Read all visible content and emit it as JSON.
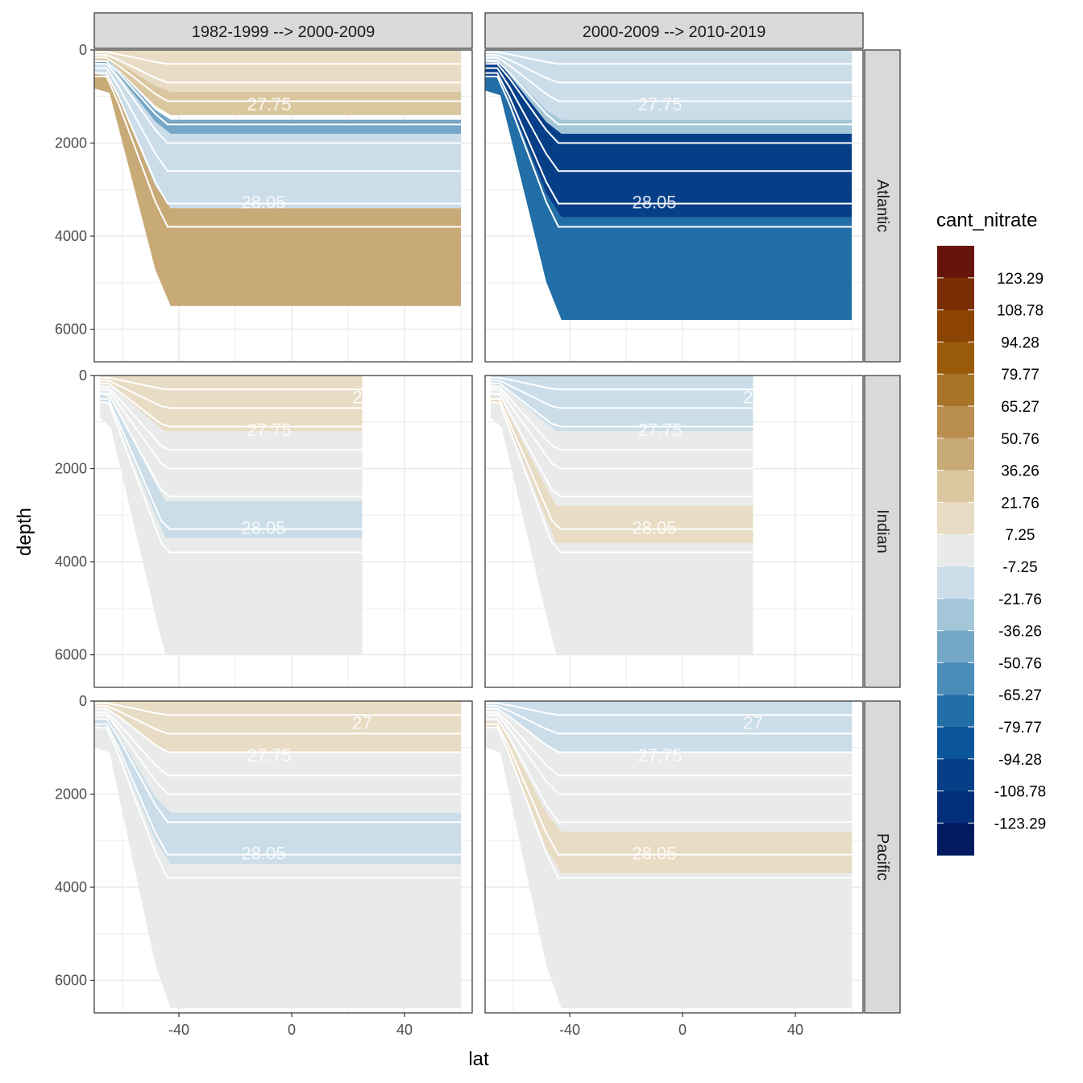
{
  "chart_data": {
    "type": "heatmap",
    "facet_columns": [
      "1982-1999 --> 2000-2009",
      "2000-2009 --> 2010-2019"
    ],
    "facet_rows": [
      "Atlantic",
      "Indian",
      "Pacific"
    ],
    "xlabel": "lat",
    "ylabel": "depth",
    "x_ticks": [
      -40,
      0,
      40
    ],
    "y_ticks": [
      0,
      2000,
      4000,
      6000
    ],
    "xlim": [
      -70,
      64
    ],
    "ylim": [
      6700,
      0
    ],
    "y_reversed": true,
    "grid": true,
    "legend": {
      "title": "cant_nitrate",
      "position": "right",
      "breaks": [
        "123.29",
        "108.78",
        "94.28",
        "79.77",
        "65.27",
        "50.76",
        "36.26",
        "21.76",
        "7.25",
        "-7.25",
        "-21.76",
        "-36.26",
        "-50.76",
        "-65.27",
        "-79.77",
        "-94.28",
        "-108.78",
        "-123.29"
      ],
      "colors": [
        "#67150a",
        "#7a2e06",
        "#8c4405",
        "#995b0a",
        "#a8742a",
        "#b98e4f",
        "#c8aa76",
        "#dac79f",
        "#e9dcc4",
        "#e9eaea",
        "#cadde9",
        "#a3c7d8",
        "#75a7c6",
        "#4a8cb7",
        "#226ea6",
        "#0b559a",
        "#063f88",
        "#032f78",
        "#021a5f"
      ]
    },
    "isopycnal_labels": [
      "27.75",
      "28.05",
      "27"
    ],
    "panels": [
      {
        "basin": "Atlantic",
        "period": "1982-1999 --> 2000-2009",
        "max_depth_south": 6000,
        "shelf_lat_range": [
          -70,
          60
        ],
        "layers": [
          {
            "depth_range": [
              0,
              900
            ],
            "value": 7.25
          },
          {
            "depth_range": [
              900,
              1400
            ],
            "value": 21.76
          },
          {
            "depth_range": [
              1500,
              1800
            ],
            "value": -50.76
          },
          {
            "depth_range": [
              1800,
              3400
            ],
            "value": -21.76
          },
          {
            "depth_range": [
              3400,
              5500
            ],
            "value": 36.26
          }
        ],
        "isopycnal_label_values": [
          "27.75",
          "28.05"
        ]
      },
      {
        "basin": "Atlantic",
        "period": "2000-2009 --> 2010-2019",
        "max_depth_south": 6000,
        "shelf_lat_range": [
          -70,
          60
        ],
        "layers": [
          {
            "depth_range": [
              0,
              1500
            ],
            "value": -21.76
          },
          {
            "depth_range": [
              1500,
              1800
            ],
            "value": -36.26
          },
          {
            "depth_range": [
              1800,
              3600
            ],
            "value": -108.78
          },
          {
            "depth_range": [
              3600,
              5800
            ],
            "value": -79.77
          }
        ],
        "isopycnal_label_values": [
          "27.75",
          "28.05"
        ]
      },
      {
        "basin": "Indian",
        "period": "1982-1999 --> 2000-2009",
        "max_depth_south": 6200,
        "shelf_lat_range": [
          -68,
          25
        ],
        "layers": [
          {
            "depth_range": [
              0,
              1200
            ],
            "value": 7.25
          },
          {
            "depth_range": [
              1200,
              2700
            ],
            "value": -7.25
          },
          {
            "depth_range": [
              2700,
              3500
            ],
            "value": -21.76
          },
          {
            "depth_range": [
              3500,
              6000
            ],
            "value": -7.25
          }
        ],
        "isopycnal_label_values": [
          "27.75",
          "28.05",
          "27"
        ]
      },
      {
        "basin": "Indian",
        "period": "2000-2009 --> 2010-2019",
        "max_depth_south": 6200,
        "shelf_lat_range": [
          -68,
          25
        ],
        "layers": [
          {
            "depth_range": [
              0,
              1200
            ],
            "value": -21.76
          },
          {
            "depth_range": [
              1200,
              2800
            ],
            "value": -7.25
          },
          {
            "depth_range": [
              2800,
              3600
            ],
            "value": 7.25
          },
          {
            "depth_range": [
              3600,
              6000
            ],
            "value": -7.25
          }
        ],
        "isopycnal_label_values": [
          "27.75",
          "28.05",
          "27"
        ]
      },
      {
        "basin": "Pacific",
        "period": "1982-1999 --> 2000-2009",
        "max_depth_south": 6600,
        "shelf_lat_range": [
          -70,
          60
        ],
        "layers": [
          {
            "depth_range": [
              0,
              1100
            ],
            "value": 7.25
          },
          {
            "depth_range": [
              1100,
              2400
            ],
            "value": -7.25
          },
          {
            "depth_range": [
              2400,
              3500
            ],
            "value": -21.76
          },
          {
            "depth_range": [
              3500,
              6600
            ],
            "value": -7.25
          }
        ],
        "isopycnal_label_values": [
          "27",
          "27.75",
          "28.05"
        ]
      },
      {
        "basin": "Pacific",
        "period": "2000-2009 --> 2010-2019",
        "max_depth_south": 6600,
        "shelf_lat_range": [
          -70,
          60
        ],
        "layers": [
          {
            "depth_range": [
              0,
              1100
            ],
            "value": -21.76
          },
          {
            "depth_range": [
              1100,
              2800
            ],
            "value": -7.25
          },
          {
            "depth_range": [
              2800,
              3700
            ],
            "value": 7.25
          },
          {
            "depth_range": [
              3700,
              6600
            ],
            "value": -7.25
          }
        ],
        "isopycnal_label_values": [
          "27",
          "27.75",
          "28.05"
        ]
      }
    ]
  }
}
